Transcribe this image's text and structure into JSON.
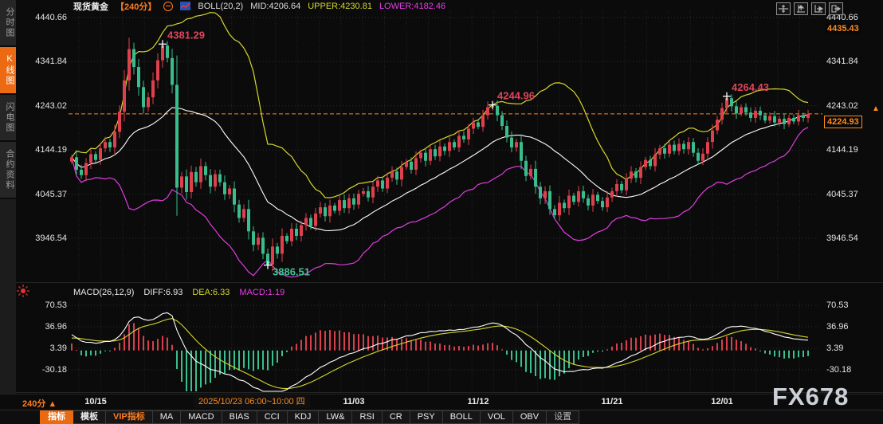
{
  "header": {
    "symbol": "现货黄金",
    "period": "【240分】",
    "boll_label": "BOLL(20,2)",
    "mid_label": "MID:4206.64",
    "upper_label": "UPPER:4230.81",
    "lower_label": "LOWER:4182.46"
  },
  "sidebar": {
    "items": [
      {
        "label": "分时图",
        "active": false
      },
      {
        "label": "K线图",
        "active": true
      },
      {
        "label": "闪电图",
        "active": false
      },
      {
        "label": "合约资料",
        "active": false
      }
    ]
  },
  "top_icons": [
    {
      "name": "pan-crosshair-icon"
    },
    {
      "name": "y-axis-scale-icon"
    },
    {
      "name": "x-axis-scale-icon"
    },
    {
      "name": "exit-restore-icon"
    }
  ],
  "price_axis": {
    "labels": [
      4440.66,
      4341.84,
      4243.02,
      4144.19,
      4045.37,
      3946.54
    ],
    "high_chip": "4435.43",
    "last_chip": "4224.93",
    "last_arrow": "▲"
  },
  "macd_panel": {
    "title": "MACD(26,12,9)",
    "diff_label": "DIFF:6.93",
    "dea_label": "DEA:6.33",
    "macd_label": "MACD:1.19",
    "axis_labels": [
      70.53,
      36.96,
      3.39,
      -30.18
    ]
  },
  "time_axis": {
    "period_label": "240分",
    "period_arrow": "▲",
    "selected_label": "2025/10/23 06:00~10:00 四",
    "ticks": [
      {
        "index": 5,
        "label": "10/15"
      },
      {
        "index": 59,
        "label": "11/03"
      },
      {
        "index": 85,
        "label": "11/12"
      },
      {
        "index": 113,
        "label": "11/21"
      },
      {
        "index": 136,
        "label": "12/01"
      }
    ]
  },
  "bottom_toolbar": {
    "items": [
      {
        "label": "指标",
        "style": "active"
      },
      {
        "label": "模板",
        "style": "strong"
      },
      {
        "label": "VIP指标",
        "style": "vip"
      },
      {
        "label": "MA",
        "style": ""
      },
      {
        "label": "MACD",
        "style": ""
      },
      {
        "label": "BIAS",
        "style": ""
      },
      {
        "label": "CCI",
        "style": ""
      },
      {
        "label": "KDJ",
        "style": ""
      },
      {
        "label": "LW&",
        "style": ""
      },
      {
        "label": "RSI",
        "style": ""
      },
      {
        "label": "CR",
        "style": ""
      },
      {
        "label": "PSY",
        "style": ""
      },
      {
        "label": "BOLL",
        "style": ""
      },
      {
        "label": "VOL",
        "style": ""
      },
      {
        "label": "OBV",
        "style": ""
      },
      {
        "label": "设置",
        "style": "muted"
      }
    ]
  },
  "watermark": "FX678",
  "colors": {
    "up": "#e0404e",
    "down": "#3abd8d",
    "boll_upper": "#d6d62e",
    "boll_mid": "#ffffff",
    "boll_lower": "#e03ce0",
    "accent": "#ff8a1e",
    "ann_high": "#e0455a",
    "ann_low": "#3fc492",
    "macd_diff": "#ffffff",
    "macd_dea": "#d6d62e",
    "macd_hist_up": "#d6404c",
    "macd_hist_down": "#3bbf8e",
    "grid_h": "#2e2e2e",
    "grid_v": "#232323"
  },
  "chart_data": {
    "type": "candlestick",
    "symbol": "现货黄金",
    "interval": "240min",
    "title": "现货黄金 240分 K线图 BOLL(20,2) + MACD(26,12,9)",
    "y_axis_labels": [
      4440.66,
      4341.84,
      4243.02,
      4144.19,
      4045.37,
      3946.54
    ],
    "macd_axis_labels": [
      70.53,
      36.96,
      3.39,
      -30.18
    ],
    "last_price": 4224.93,
    "session_high": 4435.43,
    "boll": {
      "period": 20,
      "mult": 2,
      "mid": 4206.64,
      "upper": 4230.81,
      "lower": 4182.46
    },
    "macd": {
      "fast": 12,
      "slow": 26,
      "signal": 9,
      "diff": 6.93,
      "dea": 6.33,
      "hist": 1.19
    },
    "annotations": [
      {
        "index": 19,
        "price": 4381.29,
        "label": "4381.29",
        "kind": "high"
      },
      {
        "index": 41,
        "price": 3886.51,
        "label": "3886.51",
        "kind": "low"
      },
      {
        "index": 88,
        "price": 4244.96,
        "label": "4244.96",
        "kind": "high"
      },
      {
        "index": 137,
        "price": 4264.43,
        "label": "4264.43",
        "kind": "high"
      }
    ],
    "closes": [
      4128,
      4100,
      4088,
      4115,
      4135,
      4122,
      4148,
      4162,
      4150,
      4185,
      4230,
      4300,
      4370,
      4330,
      4285,
      4240,
      4262,
      4300,
      4345,
      4378,
      4350,
      4290,
      4060,
      4085,
      4050,
      4095,
      4072,
      4108,
      4088,
      4062,
      4090,
      4072,
      4045,
      4058,
      4022,
      3992,
      4012,
      3962,
      3932,
      3948,
      3912,
      3888,
      3928,
      3912,
      3952,
      3940,
      3968,
      3952,
      3976,
      3992,
      3974,
      4002,
      4016,
      3996,
      4020,
      4008,
      4032,
      4014,
      4036,
      4022,
      4046,
      4052,
      4038,
      4062,
      4076,
      4058,
      4082,
      4096,
      4078,
      4106,
      4118,
      4100,
      4126,
      4138,
      4120,
      4146,
      4130,
      4152,
      4142,
      4162,
      4150,
      4176,
      4168,
      4192,
      4206,
      4196,
      4222,
      4240,
      4243,
      4222,
      4198,
      4172,
      4150,
      4162,
      4120,
      4086,
      4102,
      4062,
      4036,
      4052,
      4012,
      3998,
      4026,
      4014,
      4042,
      4028,
      4052,
      4036,
      4020,
      4044,
      4030,
      4016,
      4038,
      4052,
      4068,
      4054,
      4080,
      4096,
      4082,
      4106,
      4122,
      4108,
      4134,
      4148,
      4136,
      4156,
      4142,
      4158,
      4146,
      4162,
      4138,
      4120,
      4136,
      4162,
      4188,
      4212,
      4238,
      4260,
      4242,
      4226,
      4240,
      4228,
      4216,
      4232,
      4222,
      4210,
      4220,
      4206,
      4214,
      4202,
      4216,
      4208,
      4222,
      4216,
      4224.93
    ]
  }
}
